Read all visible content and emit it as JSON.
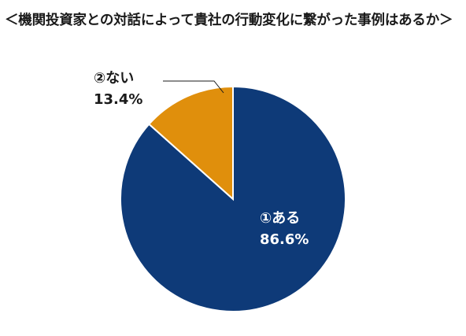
{
  "chart_data": {
    "type": "pie",
    "title": "＜機関投資家との対話によって貴社の行動変化に繋がった事例はあるか＞",
    "slices": [
      {
        "label": "①ある",
        "value": 86.6,
        "value_label": "86.6%",
        "color": "#0e3a78",
        "label_color": "#ffffff"
      },
      {
        "label": "②ない",
        "value": 13.4,
        "value_label": "13.4%",
        "color": "#e08f0c",
        "label_color": "#1a1a1a"
      }
    ]
  }
}
